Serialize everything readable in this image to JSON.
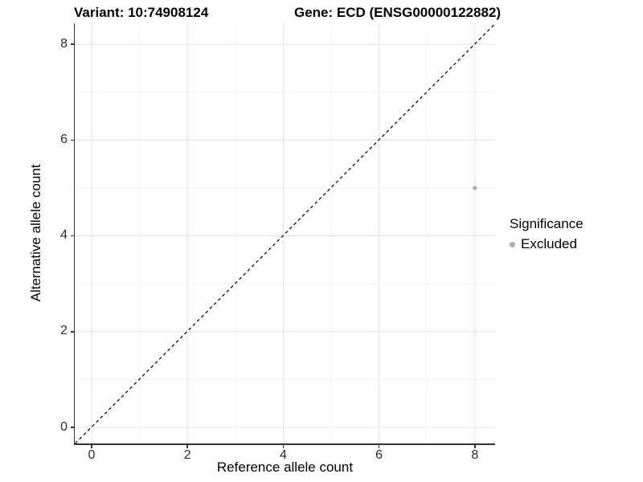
{
  "chart_data": {
    "type": "scatter",
    "title_left": "Variant: 10:74908124",
    "title_right": "Gene: ECD (ENSG00000122882)",
    "xlabel": "Reference allele count",
    "ylabel": "Alternative allele count",
    "xlim": [
      -0.35,
      8.42
    ],
    "ylim": [
      -0.35,
      8.42
    ],
    "x_ticks": [
      0,
      2,
      4,
      6,
      8
    ],
    "y_ticks": [
      0,
      2,
      4,
      6,
      8
    ],
    "x_minor_ticks": [
      1,
      3,
      5,
      7
    ],
    "y_minor_ticks": [
      1,
      3,
      5,
      7
    ],
    "grid": "major+minor",
    "series": [
      {
        "name": "Excluded",
        "color": "#b0b0b0",
        "points": [
          {
            "x": 8,
            "y": 5
          }
        ]
      }
    ],
    "reference_line": {
      "type": "y=x",
      "style": "dashed",
      "color": "#000000"
    },
    "legend": {
      "title": "Significance",
      "position": "right",
      "entries": [
        {
          "label": "Excluded",
          "color": "#adadad"
        }
      ]
    },
    "colors": {
      "background": "#ffffff",
      "grid_major": "#e4e4e4",
      "grid_minor": "#f2f2f2",
      "axis": "#333333",
      "point": "#b0b0b0"
    }
  }
}
